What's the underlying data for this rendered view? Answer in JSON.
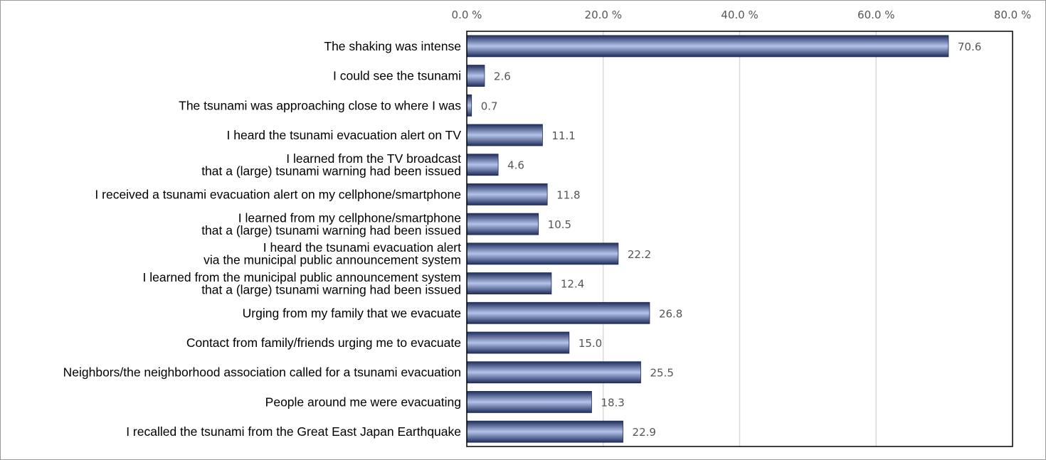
{
  "chart_data": {
    "type": "bar",
    "orientation": "horizontal",
    "categories": [
      [
        "The shaking was intense"
      ],
      [
        "I could see the tsunami"
      ],
      [
        "The tsunami was approaching close to where I was"
      ],
      [
        "I heard the tsunami evacuation alert on TV"
      ],
      [
        "I learned from the TV broadcast",
        "that a (large) tsunami warning had been issued"
      ],
      [
        "I received a tsunami evacuation alert on my cellphone/smartphone"
      ],
      [
        "I learned from my cellphone/smartphone",
        "that a (large) tsunami warning had been issued"
      ],
      [
        "I heard the tsunami evacuation alert",
        "via the municipal public announcement system"
      ],
      [
        "I learned from the municipal public announcement system",
        "that a (large) tsunami warning had been issued"
      ],
      [
        "Urging from my family that we evacuate"
      ],
      [
        "Contact from family/friends urging me to evacuate"
      ],
      [
        "Neighbors/the neighborhood association called for a tsunami evacuation"
      ],
      [
        "People around me were evacuating"
      ],
      [
        "I recalled the tsunami from the Great East Japan Earthquake"
      ]
    ],
    "values": [
      70.6,
      2.6,
      0.7,
      11.1,
      4.6,
      11.8,
      10.5,
      22.2,
      12.4,
      26.8,
      15.0,
      25.5,
      18.3,
      22.9
    ],
    "value_labels": [
      "70.6",
      "2.6",
      "0.7",
      "11.1",
      "4.6",
      "11.8",
      "10.5",
      "22.2",
      "12.4",
      "26.8",
      "15.0",
      "25.5",
      "18.3",
      "22.9"
    ],
    "xlim": [
      0,
      80
    ],
    "x_ticks": [
      0,
      20,
      40,
      60,
      80
    ],
    "x_tick_labels": [
      "0.0 %",
      "20.0 %",
      "40.0 %",
      "60.0 %",
      "80.0 %"
    ],
    "x_axis_position": "top",
    "grid": true,
    "legend": "none",
    "title": "",
    "xlabel": "",
    "ylabel": "",
    "colors": {
      "bar_dark": "#1f2d5c",
      "bar_light": "#b4c3ea",
      "grid": "#d9d9d9",
      "axis": "#000000",
      "frame": "#9a9a9a"
    }
  }
}
